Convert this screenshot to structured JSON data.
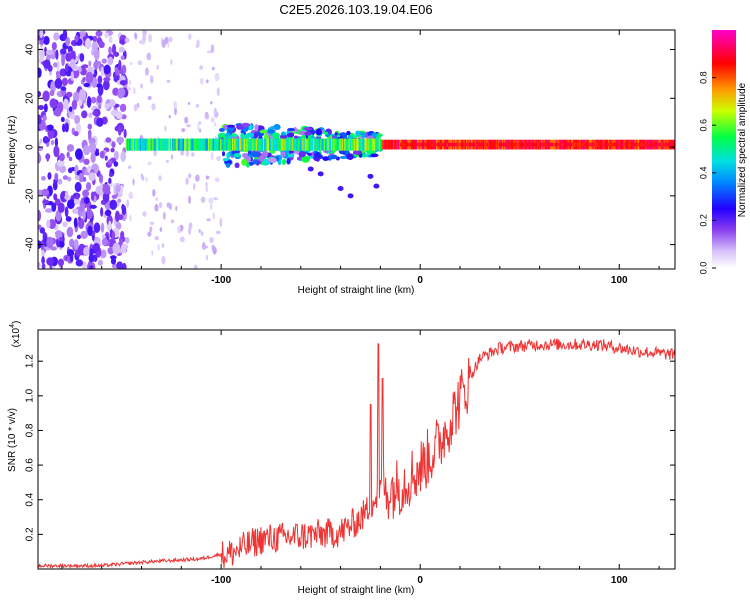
{
  "title": "C2E5.2026.103.19.04.E06",
  "chart_data": [
    {
      "type": "heatmap",
      "name": "spectrogram",
      "xlabel": "Height of straight line (km)",
      "ylabel": "Frequency (Hz)",
      "xlim": [
        -192,
        128
      ],
      "ylim": [
        -50,
        48
      ],
      "xticks": [
        -100,
        0,
        100
      ],
      "xtick_labels": [
        "-100",
        "0",
        "100"
      ],
      "yticks": [
        -40,
        -20,
        0,
        20,
        40
      ],
      "ytick_labels": [
        "-40",
        "-20",
        "0",
        "20",
        "40"
      ],
      "colorbar": {
        "label": "Normalized spectral amplitude",
        "range": [
          0,
          1
        ],
        "ticks": [
          0.0,
          0.2,
          0.4,
          0.6,
          0.8
        ],
        "tick_labels": [
          "0.0",
          "0.2",
          "0.4",
          "0.6",
          "0.8"
        ],
        "colors": [
          "#ffffff",
          "#b78cf5",
          "#5a00e6",
          "#0000ff",
          "#00c8ff",
          "#00ff66",
          "#ffff00",
          "#ff7f00",
          "#ff0000",
          "#ff00ff"
        ]
      },
      "features": [
        {
          "description": "broadband noise region",
          "x_range": [
            -192,
            -148
          ],
          "freq_range": [
            -50,
            48
          ],
          "amplitude": 0.15
        },
        {
          "description": "scattered noise",
          "x_range": [
            -148,
            -100
          ],
          "freq_range": [
            -50,
            48
          ],
          "amplitude": 0.06
        },
        {
          "description": "central band",
          "x_range": [
            -148,
            128
          ],
          "freq_center": 1,
          "amplitude_peak": 1.0
        },
        {
          "description": "broadened band",
          "x_range": [
            -100,
            -20
          ],
          "freq_range": [
            -8,
            10
          ],
          "amplitude": 0.5
        }
      ]
    },
    {
      "type": "line",
      "name": "snr",
      "xlabel": "Height of straight line (km)",
      "ylabel": "SNR (10 * v/v)",
      "scale_label": "(x10",
      "scale_exponent": "4",
      "xlim": [
        -192,
        128
      ],
      "ylim": [
        0,
        1.38
      ],
      "xticks": [
        -100,
        0,
        100
      ],
      "xtick_labels": [
        "-100",
        "0",
        "100"
      ],
      "yticks": [
        0.2,
        0.4,
        0.6,
        0.8,
        1.0,
        1.2
      ],
      "ytick_labels": [
        "0.2",
        "0.4",
        "0.6",
        "0.8",
        "1.0",
        "1.2"
      ],
      "color": "#ee3333",
      "envelope": [
        {
          "x": -192,
          "y": 0.02
        },
        {
          "x": -160,
          "y": 0.02
        },
        {
          "x": -140,
          "y": 0.04
        },
        {
          "x": -110,
          "y": 0.06
        },
        {
          "x": -95,
          "y": 0.1
        },
        {
          "x": -80,
          "y": 0.18
        },
        {
          "x": -60,
          "y": 0.2
        },
        {
          "x": -40,
          "y": 0.22
        },
        {
          "x": -30,
          "y": 0.3
        },
        {
          "x": -20,
          "y": 0.45
        },
        {
          "x": -10,
          "y": 0.5
        },
        {
          "x": 0,
          "y": 0.6
        },
        {
          "x": 10,
          "y": 0.75
        },
        {
          "x": 20,
          "y": 1.0
        },
        {
          "x": 30,
          "y": 1.22
        },
        {
          "x": 40,
          "y": 1.28
        },
        {
          "x": 60,
          "y": 1.3
        },
        {
          "x": 90,
          "y": 1.3
        },
        {
          "x": 110,
          "y": 1.26
        },
        {
          "x": 128,
          "y": 1.24
        }
      ],
      "spikes": [
        {
          "x": -21,
          "y": 1.3
        },
        {
          "x": -19,
          "y": 1.1
        },
        {
          "x": -25,
          "y": 0.95
        }
      ]
    }
  ]
}
